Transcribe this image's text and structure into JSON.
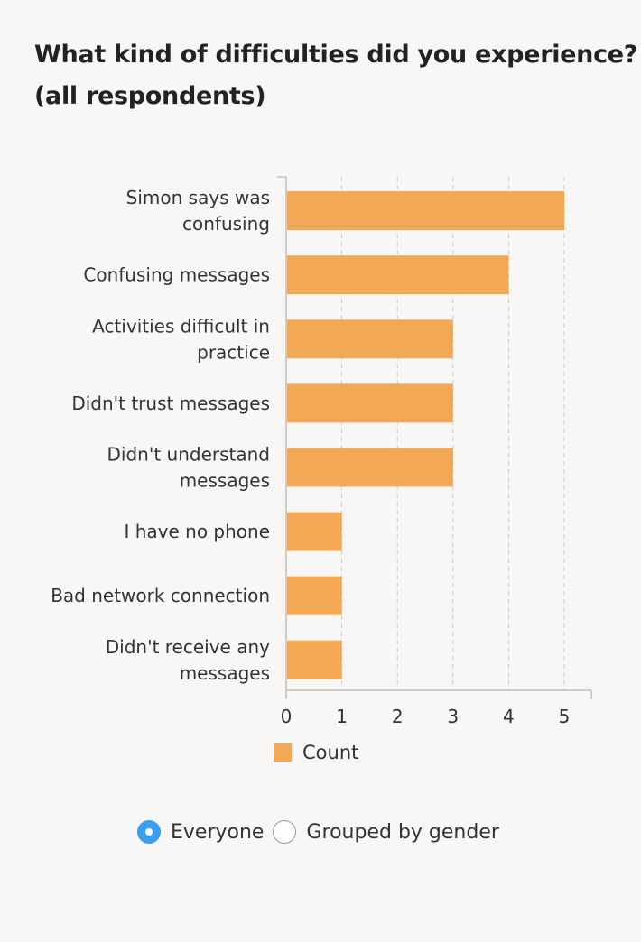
{
  "title_lines": [
    "What kind of difficulties did you experience?",
    "(all respondents)"
  ],
  "chart_data": {
    "type": "bar",
    "orientation": "horizontal",
    "categories": [
      [
        "Simon says was",
        "confusing"
      ],
      [
        "Confusing messages"
      ],
      [
        "Activities difficult in",
        "practice"
      ],
      [
        "Didn't trust messages"
      ],
      [
        "Didn't understand",
        "messages"
      ],
      [
        "I have no phone"
      ],
      [
        "Bad network connection"
      ],
      [
        "Didn't receive any",
        "messages"
      ]
    ],
    "series": [
      {
        "name": "Count",
        "values": [
          5,
          4,
          3,
          3,
          3,
          1,
          1,
          1
        ]
      }
    ],
    "xlim": [
      0,
      5.5
    ],
    "xticks": [
      0,
      1,
      2,
      3,
      4,
      5
    ],
    "grid": "vertical dashed",
    "legend": "bottom",
    "colors": {
      "bar": "#f3a855",
      "axis": "#cccccc",
      "grid": "#cccccc"
    }
  },
  "controls": {
    "options": [
      {
        "label": "Everyone",
        "checked": true
      },
      {
        "label": "Grouped by gender",
        "checked": false
      }
    ]
  }
}
